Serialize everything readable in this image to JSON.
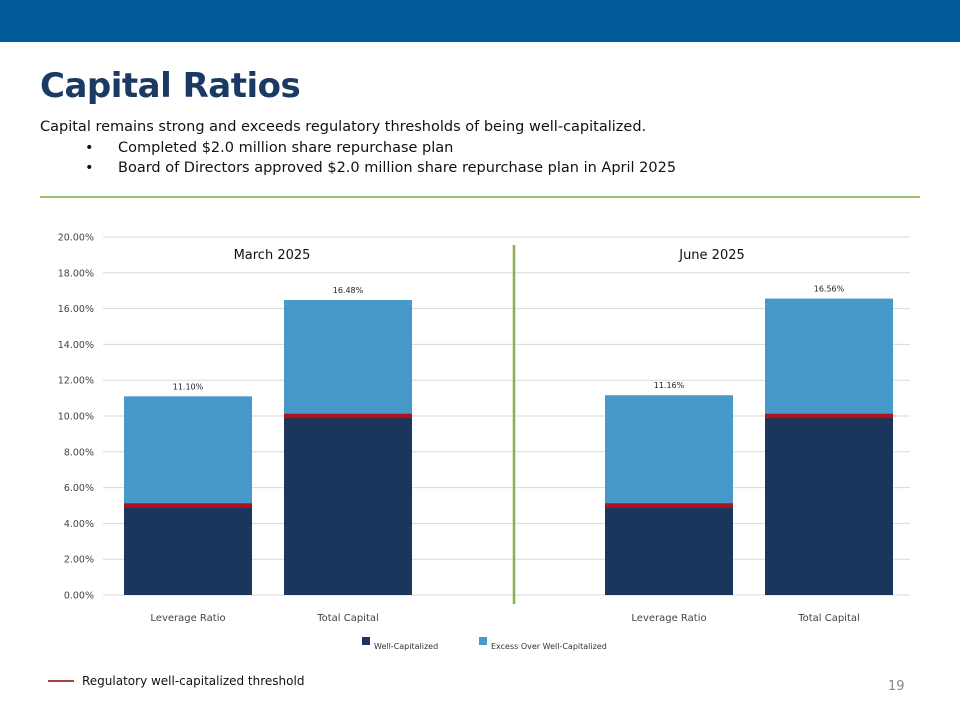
{
  "slide": {
    "title": "Capital Ratios",
    "subtitle": "Capital remains strong and exceeds regulatory thresholds of being well-capitalized.",
    "bullets": [
      "Completed $2.0 million share repurchase plan",
      "Board of Directors approved $2.0 million share repurchase plan in April 2025"
    ],
    "bullet_glyph": "•",
    "threshold_legend": "Regulatory well-capitalized threshold",
    "page_number": "19"
  },
  "colors": {
    "top_band": "#005a9c",
    "title": "#1b3a63",
    "rule": "#92c36a",
    "well_capitalized": "#1b365d",
    "excess": "#4699c8",
    "threshold": "#b0121b",
    "divider": "#8db04e",
    "gridline": "#d9d9d9"
  },
  "chart_data": {
    "type": "bar",
    "stacked": true,
    "title": "",
    "ylabel": "",
    "xlabel": "",
    "ylim": [
      0,
      20
    ],
    "yticks": [
      0,
      2,
      4,
      6,
      8,
      10,
      12,
      14,
      16,
      18,
      20
    ],
    "ytick_labels": [
      "0.00%",
      "2.00%",
      "4.00%",
      "6.00%",
      "8.00%",
      "10.00%",
      "12.00%",
      "14.00%",
      "16.00%",
      "18.00%",
      "20.00%"
    ],
    "grid": true,
    "legend_position": "bottom",
    "groups": [
      {
        "label": "March 2025",
        "categories": [
          "Leverage Ratio",
          "Total Capital"
        ],
        "totals": [
          11.1,
          16.48
        ],
        "total_labels": [
          "11.10%",
          "16.48%"
        ],
        "thresholds": [
          5.0,
          10.0
        ]
      },
      {
        "label": "June 2025",
        "categories": [
          "Leverage Ratio",
          "Total Capital"
        ],
        "totals": [
          11.16,
          16.56
        ],
        "total_labels": [
          "11.16%",
          "16.56%"
        ],
        "thresholds": [
          5.0,
          10.0
        ]
      }
    ],
    "series": [
      {
        "name": "Well-Capitalized",
        "values": [
          5.0,
          10.0,
          5.0,
          10.0
        ]
      },
      {
        "name": "Excess Over Well-Capitalized",
        "values": [
          6.1,
          6.48,
          6.16,
          6.56
        ]
      }
    ],
    "threshold_series": {
      "name": "Regulatory well-capitalized threshold",
      "values": [
        5.0,
        10.0,
        5.0,
        10.0
      ]
    }
  }
}
